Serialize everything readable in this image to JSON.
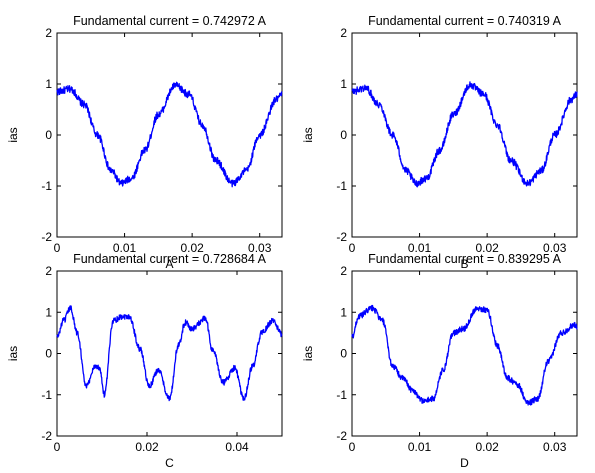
{
  "chart_data": [
    {
      "type": "line",
      "title": "Fundamental current = 0.742972 A",
      "xlabel": "A",
      "ylabel": "ias",
      "xlim": [
        0,
        0.0333
      ],
      "ylim": [
        -2,
        2
      ],
      "x_ticks": [
        0,
        0.01,
        0.02,
        0.03
      ],
      "x_tick_labels": [
        "0",
        "0.01",
        "0.02",
        "0.03"
      ],
      "y_ticks": [
        -2,
        -1,
        0,
        1,
        2
      ],
      "y_tick_labels": [
        "-2",
        "-1",
        "0",
        "1",
        "2"
      ],
      "grid": false,
      "series": [
        {
          "color": "#0000ff",
          "x": [
            0,
            0.002,
            0.004,
            0.006,
            0.008,
            0.0095,
            0.011,
            0.013,
            0.015,
            0.0175,
            0.0195,
            0.0215,
            0.0235,
            0.026,
            0.028,
            0.03,
            0.0325,
            0.0333
          ],
          "values": [
            0.85,
            0.9,
            0.6,
            0.0,
            -0.7,
            -0.95,
            -0.85,
            -0.3,
            0.4,
            0.97,
            0.8,
            0.2,
            -0.5,
            -0.95,
            -0.7,
            0.0,
            0.7,
            0.8
          ]
        }
      ]
    },
    {
      "type": "line",
      "title": "Fundamental current = 0.740319 A",
      "xlabel": "B",
      "ylabel": "ias",
      "xlim": [
        0,
        0.0333
      ],
      "ylim": [
        -2,
        2
      ],
      "x_ticks": [
        0,
        0.01,
        0.02,
        0.03
      ],
      "x_tick_labels": [
        "0",
        "0.01",
        "0.02",
        "0.03"
      ],
      "y_ticks": [
        -2,
        -1,
        0,
        1,
        2
      ],
      "y_tick_labels": [
        "-2",
        "-1",
        "0",
        "1",
        "2"
      ],
      "grid": false,
      "series": [
        {
          "color": "#0000ff",
          "x": [
            0,
            0.002,
            0.004,
            0.006,
            0.008,
            0.0095,
            0.011,
            0.013,
            0.015,
            0.0175,
            0.0195,
            0.0215,
            0.0235,
            0.026,
            0.028,
            0.03,
            0.0325,
            0.0333
          ],
          "values": [
            0.85,
            0.92,
            0.6,
            0.0,
            -0.7,
            -0.95,
            -0.85,
            -0.3,
            0.4,
            0.98,
            0.8,
            0.2,
            -0.5,
            -0.95,
            -0.7,
            0.0,
            0.7,
            0.8
          ]
        }
      ]
    },
    {
      "type": "line",
      "title": "Fundamental current = 0.728684 A",
      "xlabel": "C",
      "ylabel": "ias",
      "xlim": [
        0,
        0.05
      ],
      "ylim": [
        -2,
        2
      ],
      "x_ticks": [
        0,
        0.02,
        0.04
      ],
      "x_tick_labels": [
        "0",
        "0.02",
        "0.04"
      ],
      "y_ticks": [
        -2,
        -1,
        0,
        1,
        2
      ],
      "y_tick_labels": [
        "-2",
        "-1",
        "0",
        "1",
        "2"
      ],
      "grid": false,
      "series": [
        {
          "color": "#0000ff",
          "x": [
            0,
            0.0015,
            0.003,
            0.0045,
            0.0065,
            0.0085,
            0.0095,
            0.0105,
            0.0125,
            0.0145,
            0.016,
            0.0185,
            0.0205,
            0.0225,
            0.025,
            0.027,
            0.0285,
            0.03,
            0.033,
            0.0345,
            0.037,
            0.0395,
            0.0415,
            0.0435,
            0.0455,
            0.048,
            0.05
          ],
          "values": [
            0.4,
            0.8,
            1.1,
            0.5,
            -0.8,
            -0.3,
            -0.35,
            -1.0,
            0.8,
            0.9,
            0.9,
            0.1,
            -0.8,
            -0.4,
            -1.1,
            0.2,
            0.75,
            0.6,
            0.85,
            0.1,
            -0.7,
            -0.35,
            -1.1,
            -0.3,
            0.5,
            0.8,
            0.45
          ]
        }
      ]
    },
    {
      "type": "line",
      "title": "Fundamental current = 0.839295 A",
      "xlabel": "D",
      "ylabel": "ias",
      "xlim": [
        0,
        0.0333
      ],
      "ylim": [
        -2,
        2
      ],
      "x_ticks": [
        0,
        0.01,
        0.02,
        0.03
      ],
      "x_tick_labels": [
        "0",
        "0.01",
        "0.02",
        "0.03"
      ],
      "y_ticks": [
        -2,
        -1,
        0,
        1,
        2
      ],
      "y_tick_labels": [
        "-2",
        "-1",
        "0",
        "1",
        "2"
      ],
      "grid": false,
      "series": [
        {
          "color": "#0000ff",
          "x": [
            0,
            0.001,
            0.003,
            0.0045,
            0.006,
            0.0075,
            0.009,
            0.0105,
            0.012,
            0.0135,
            0.015,
            0.0165,
            0.0185,
            0.02,
            0.0215,
            0.023,
            0.0245,
            0.026,
            0.0275,
            0.029,
            0.031,
            0.033,
            0.0333
          ],
          "values": [
            0.4,
            0.9,
            1.1,
            0.8,
            -0.3,
            -0.6,
            -0.9,
            -1.15,
            -1.1,
            -0.4,
            0.5,
            0.6,
            1.1,
            1.05,
            0.2,
            -0.6,
            -0.75,
            -1.2,
            -1.1,
            -0.2,
            0.5,
            0.7,
            0.65
          ]
        }
      ]
    }
  ]
}
